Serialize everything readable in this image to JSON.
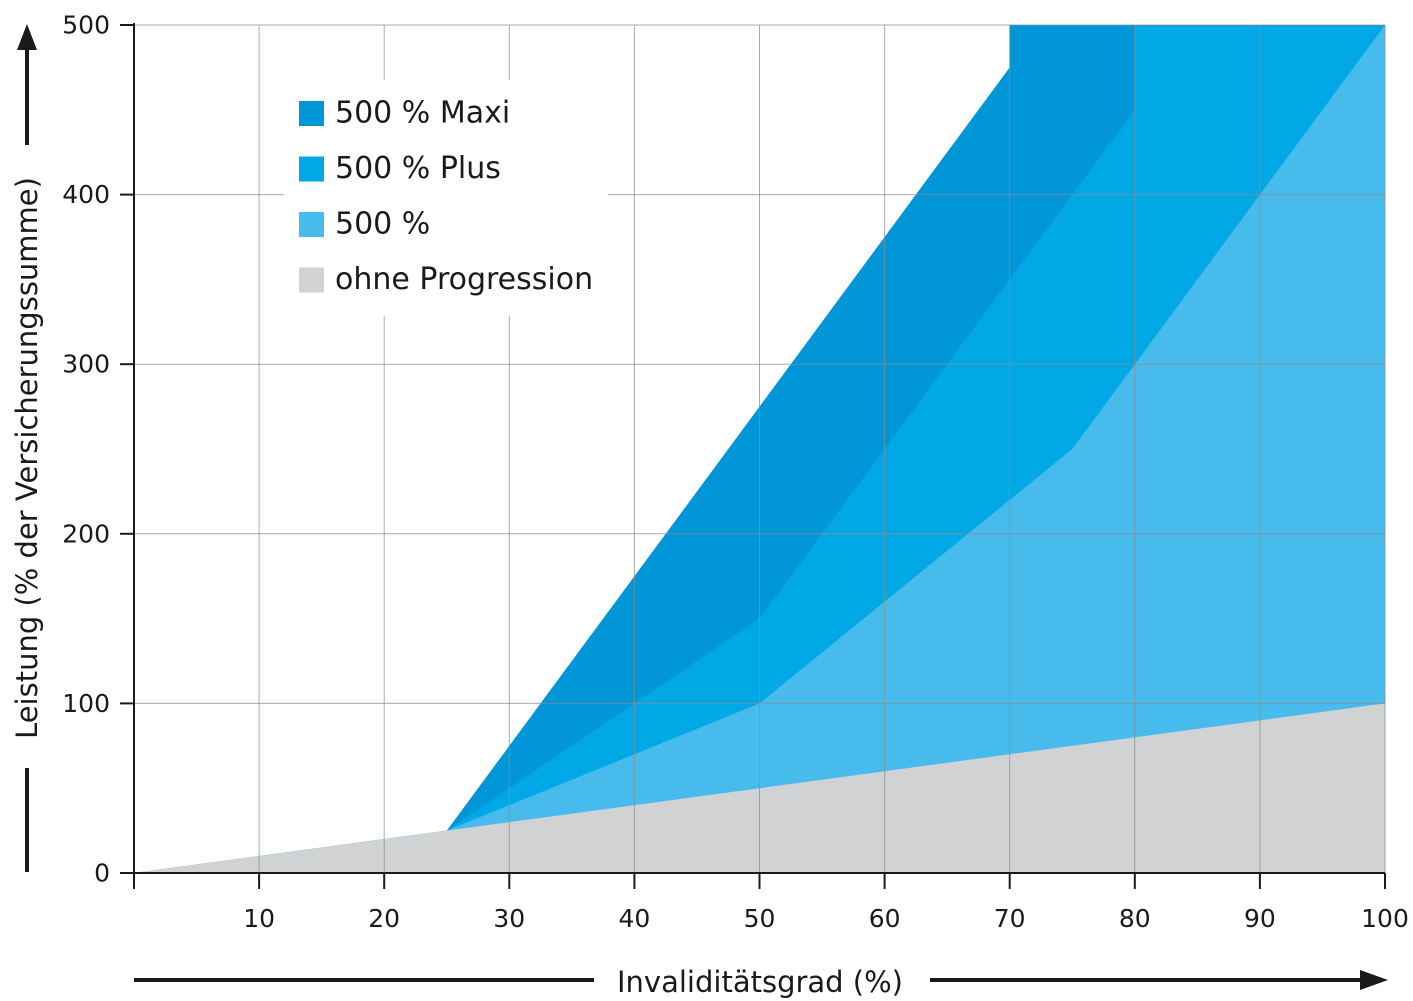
{
  "chart_data": {
    "type": "area",
    "xlabel": "Invaliditätsgrad (%)",
    "ylabel": "Leistung (% der Versicherungssumme)",
    "xlim": [
      0,
      100
    ],
    "ylim": [
      0,
      500
    ],
    "x_ticks": [
      "10",
      "20",
      "30",
      "40",
      "50",
      "60",
      "70",
      "80",
      "90",
      "100"
    ],
    "y_ticks": [
      "0",
      "100",
      "200",
      "300",
      "400",
      "500"
    ],
    "grid": true,
    "legend_position": "top-left",
    "series": [
      {
        "name": "500 % Maxi",
        "color": "#0096d8",
        "points": [
          [
            0,
            0
          ],
          [
            25,
            25
          ],
          [
            30,
            75
          ],
          [
            35,
            125
          ],
          [
            40,
            175
          ],
          [
            45,
            225
          ],
          [
            50,
            275
          ],
          [
            55,
            325
          ],
          [
            60,
            375
          ],
          [
            65,
            425
          ],
          [
            70,
            475
          ],
          [
            70,
            500
          ],
          [
            100,
            500
          ]
        ]
      },
      {
        "name": "500 % Plus",
        "color": "#00a9e5",
        "points": [
          [
            0,
            0
          ],
          [
            25,
            25
          ],
          [
            40,
            100
          ],
          [
            50,
            150
          ],
          [
            55,
            200
          ],
          [
            60,
            250
          ],
          [
            70,
            350
          ],
          [
            75,
            400
          ],
          [
            80,
            450
          ],
          [
            80,
            500
          ],
          [
            100,
            500
          ]
        ]
      },
      {
        "name": "500 %",
        "color": "#47bbec",
        "points": [
          [
            0,
            0
          ],
          [
            25,
            25
          ],
          [
            40,
            70
          ],
          [
            50,
            100
          ],
          [
            60,
            160
          ],
          [
            70,
            220
          ],
          [
            75,
            250
          ],
          [
            80,
            300
          ],
          [
            90,
            400
          ],
          [
            100,
            500
          ]
        ]
      },
      {
        "name": "ohne Progression",
        "color": "#d0d2d4",
        "points": [
          [
            0,
            0
          ],
          [
            100,
            100
          ]
        ]
      }
    ]
  }
}
